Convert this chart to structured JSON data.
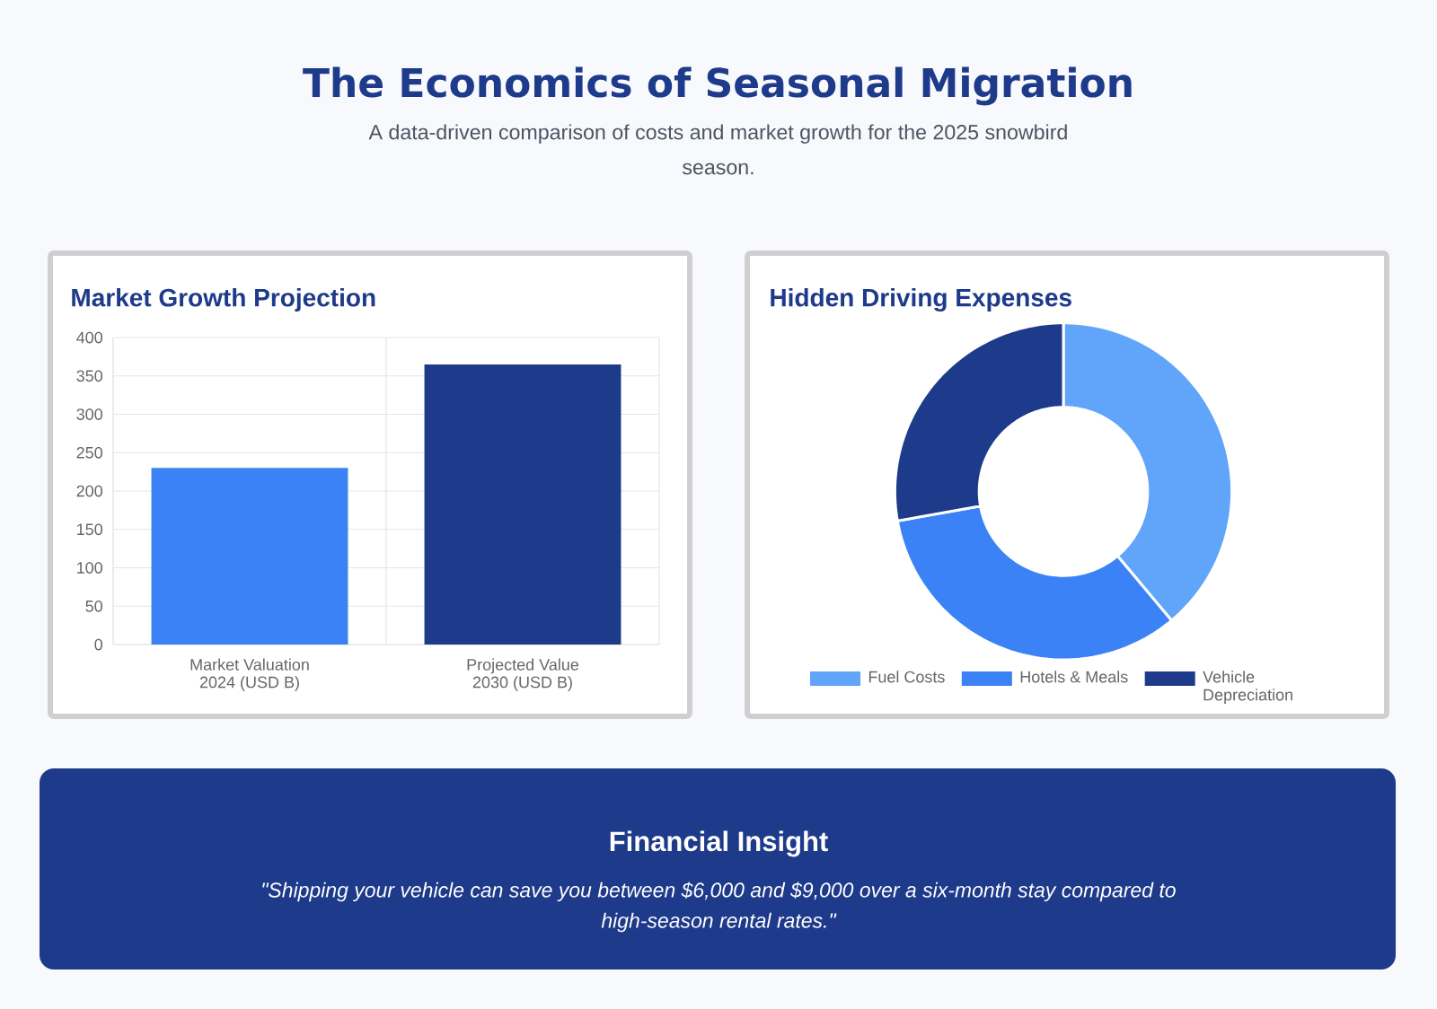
{
  "chart_data": [
    {
      "type": "other",
      "title": "The Economics of Seasonal Migration",
      "subtitle": "A data-driven comparison of costs and market growth for the 2025 snowbird season."
    },
    {
      "type": "bar",
      "title": "Market Growth Projection",
      "categories": [
        "Market Valuation 2024 (USD B)",
        "Projected Value 2030 (USD B)"
      ],
      "values": [
        230,
        365
      ],
      "colors": [
        "#3b82f6",
        "#1e3a8a"
      ],
      "ylim": [
        0,
        400
      ],
      "yticks": [
        0,
        50,
        100,
        150,
        200,
        250,
        300,
        350,
        400
      ],
      "grid": true
    },
    {
      "type": "donut",
      "title": "Hidden Driving Expenses",
      "categories": [
        "Fuel Costs",
        "Hotels & Meals",
        "Vehicle Depreciation"
      ],
      "values": [
        38.9,
        33.3,
        27.8
      ],
      "colors": [
        "#60a5fa",
        "#3b82f6",
        "#1e3a8a"
      ],
      "legend": "bottom"
    },
    {
      "type": "other",
      "title": "Financial Insight",
      "annotations": [
        "\"Shipping your vehicle can save you between $6,000 and $9,000 over a six-month stay compared to high-season rental rates.\""
      ]
    }
  ]
}
